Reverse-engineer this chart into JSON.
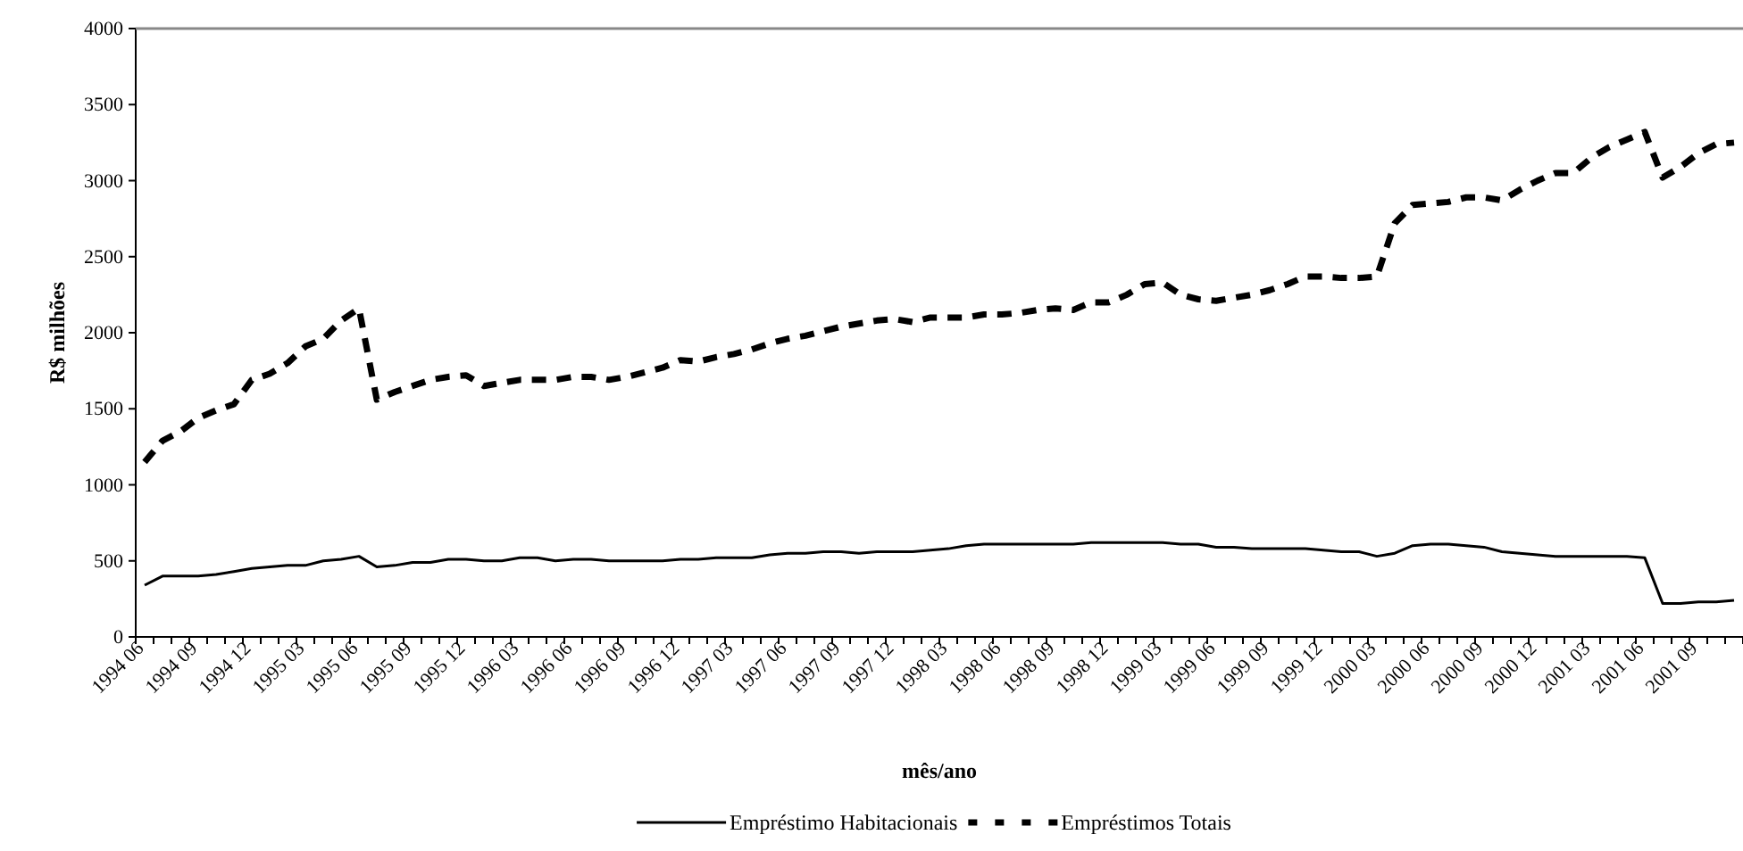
{
  "chart_data": {
    "type": "line",
    "xlabel": "mês/ano",
    "ylabel": "R$ milhões",
    "legend": "bottom",
    "grid": false,
    "categories": [
      "1994 06",
      null,
      null,
      "1994 09",
      null,
      null,
      "1994 12",
      null,
      null,
      "1995 03",
      null,
      null,
      "1995 06",
      null,
      null,
      "1995 09",
      null,
      null,
      "1995 12",
      null,
      null,
      "1996 03",
      null,
      null,
      "1996 06",
      null,
      null,
      "1996 09",
      null,
      null,
      "1996 12",
      null,
      null,
      "1997 03",
      null,
      null,
      "1997 06",
      null,
      null,
      "1997 09",
      null,
      null,
      "1997 12",
      null,
      null,
      "1998 03",
      null,
      null,
      "1998 06",
      null,
      null,
      "1998 09",
      null,
      null,
      "1998 12",
      null,
      null,
      "1999 03",
      null,
      null,
      "1999 06",
      null,
      null,
      "1999 09",
      null,
      null,
      "1999 12",
      null,
      null,
      "2000 03",
      null,
      null,
      "2000 06",
      null,
      null,
      "2000 09",
      null,
      null,
      "2000 12",
      null,
      null,
      "2001 03",
      null,
      null,
      "2001 06",
      null,
      null,
      "2001 09",
      null,
      null
    ],
    "ylim": [
      0,
      4000
    ],
    "yticks": [
      0,
      500,
      1000,
      1500,
      2000,
      2500,
      3000,
      3500,
      4000
    ],
    "series": [
      {
        "name": "Empréstimo Habitacionais",
        "color": "#000000",
        "line_style": "solid",
        "values": [
          340,
          400,
          400,
          400,
          410,
          430,
          450,
          460,
          470,
          470,
          500,
          510,
          530,
          460,
          470,
          490,
          490,
          510,
          510,
          500,
          500,
          520,
          520,
          500,
          510,
          510,
          500,
          500,
          500,
          500,
          510,
          510,
          520,
          520,
          520,
          540,
          550,
          550,
          560,
          560,
          550,
          560,
          560,
          560,
          570,
          580,
          600,
          610,
          610,
          610,
          610,
          610,
          610,
          620,
          620,
          620,
          620,
          620,
          610,
          610,
          590,
          590,
          580,
          580,
          580,
          580,
          570,
          560,
          560,
          530,
          550,
          600,
          610,
          610,
          600,
          590,
          560,
          550,
          540,
          530,
          530,
          530,
          530,
          530,
          520,
          220,
          220,
          230,
          230,
          240
        ]
      },
      {
        "name": "Empréstimos Totais",
        "color": "#000000",
        "line_style": "dashed",
        "values": [
          1150,
          1290,
          1350,
          1440,
          1490,
          1530,
          1690,
          1730,
          1800,
          1910,
          1960,
          2080,
          2160,
          1560,
          1610,
          1650,
          1690,
          1710,
          1720,
          1650,
          1670,
          1690,
          1690,
          1690,
          1710,
          1710,
          1690,
          1710,
          1740,
          1770,
          1820,
          1810,
          1840,
          1860,
          1890,
          1930,
          1960,
          1980,
          2010,
          2040,
          2060,
          2080,
          2090,
          2070,
          2100,
          2100,
          2100,
          2120,
          2120,
          2130,
          2150,
          2160,
          2150,
          2200,
          2200,
          2250,
          2320,
          2330,
          2250,
          2220,
          2210,
          2230,
          2250,
          2280,
          2320,
          2370,
          2370,
          2360,
          2360,
          2370,
          2720,
          2840,
          2850,
          2860,
          2890,
          2890,
          2870,
          2940,
          3000,
          3050,
          3050,
          3150,
          3220,
          3270,
          3320,
          3020,
          3090,
          3180,
          3240,
          3250
        ]
      }
    ]
  }
}
